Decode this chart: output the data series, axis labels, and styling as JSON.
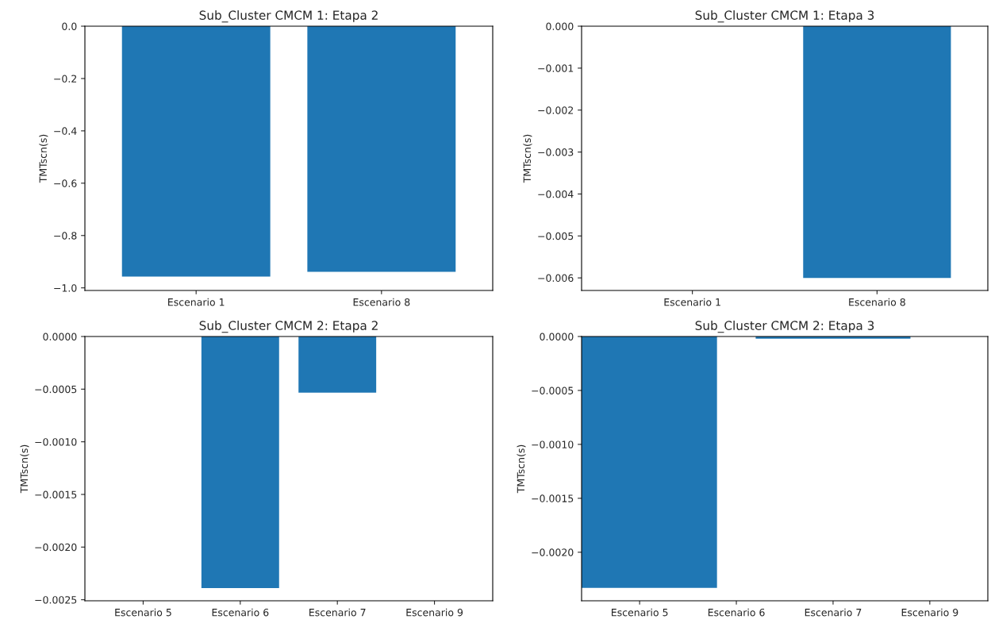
{
  "chart_data": [
    {
      "type": "bar",
      "title": "Sub_Cluster CMCM 1: Etapa 2",
      "ylabel": "TMTscn(s)",
      "categories": [
        "Escenario 1",
        "Escenario 8"
      ],
      "values": [
        -0.957,
        -0.939
      ],
      "color": "#1f77b4",
      "ylim": [
        -1.01,
        0
      ],
      "yticks": [
        {
          "value": -1.0,
          "label": "−1.0"
        },
        {
          "value": -0.8,
          "label": "−0.8"
        },
        {
          "value": -0.6,
          "label": "−0.6"
        },
        {
          "value": -0.4,
          "label": "−0.4"
        },
        {
          "value": -0.2,
          "label": "−0.2"
        },
        {
          "value": 0,
          "label": "0.0"
        }
      ]
    },
    {
      "type": "bar",
      "title": "Sub_Cluster CMCM 1: Etapa 3",
      "ylabel": "TMTscn(s)",
      "categories": [
        "Escenario 1",
        "Escenario 8"
      ],
      "values": [
        null,
        -0.006
      ],
      "color": "#1f77b4",
      "ylim": [
        -0.0063,
        0
      ],
      "yticks": [
        {
          "value": -0.006,
          "label": "−0.006"
        },
        {
          "value": -0.005,
          "label": "−0.005"
        },
        {
          "value": -0.004,
          "label": "−0.004"
        },
        {
          "value": -0.003,
          "label": "−0.003"
        },
        {
          "value": -0.002,
          "label": "−0.002"
        },
        {
          "value": -0.001,
          "label": "−0.001"
        },
        {
          "value": 0,
          "label": "0.000"
        }
      ]
    },
    {
      "type": "bar",
      "title": "Sub_Cluster CMCM 2: Etapa 2",
      "ylabel": "TMTscn(s)",
      "categories": [
        "Escenario 5",
        "Escenario 6",
        "Escenario 7",
        "Escenario 9"
      ],
      "values": [
        null,
        -0.00239,
        -0.000534,
        null
      ],
      "color": "#1f77b4",
      "ylim": [
        -0.00251,
        0
      ],
      "yticks": [
        {
          "value": -0.0025,
          "label": "−0.0025"
        },
        {
          "value": -0.002,
          "label": "−0.0020"
        },
        {
          "value": -0.0015,
          "label": "−0.0015"
        },
        {
          "value": -0.001,
          "label": "−0.0010"
        },
        {
          "value": -0.0005,
          "label": "−0.0005"
        },
        {
          "value": 0,
          "label": "0.0000"
        }
      ]
    },
    {
      "type": "bar",
      "title": "Sub_Cluster CMCM 2: Etapa 3",
      "ylabel": "TMTscn(s)",
      "categories": [
        "Escenario 5",
        "Escenario 6",
        "Escenario 7",
        "Escenario 9"
      ],
      "values": [
        -0.00233,
        null,
        -2e-05,
        null
      ],
      "color": "#1f77b4",
      "ylim": [
        -0.00245,
        0
      ],
      "yticks": [
        {
          "value": -0.002,
          "label": "−0.0020"
        },
        {
          "value": -0.0015,
          "label": "−0.0015"
        },
        {
          "value": -0.001,
          "label": "−0.0010"
        },
        {
          "value": -0.0005,
          "label": "−0.0005"
        },
        {
          "value": 0,
          "label": "0.0000"
        }
      ]
    }
  ]
}
